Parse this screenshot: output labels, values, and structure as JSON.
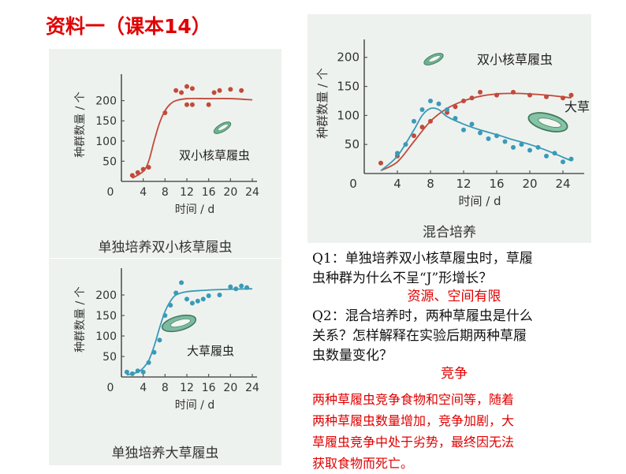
{
  "slide": {
    "title": "资料一（课本14）"
  },
  "chart_data": [
    {
      "type": "scatter",
      "title": "单独培养双小核草履虫",
      "xlabel": "时间 / d",
      "ylabel": "种群数量 / 个",
      "xlim": [
        0,
        24
      ],
      "ylim": [
        0,
        250
      ],
      "xticks": [
        0,
        4,
        8,
        12,
        16,
        20,
        24
      ],
      "yticks": [
        50,
        100,
        150,
        200
      ],
      "annotation": "双小核草履虫",
      "series": [
        {
          "color": "#c24a3a",
          "points": [
            [
              2,
              15
            ],
            [
              3,
              22
            ],
            [
              4,
              30
            ],
            [
              5,
              35
            ],
            [
              8,
              170
            ],
            [
              10,
              225
            ],
            [
              11,
              220
            ],
            [
              12,
              235
            ],
            [
              13,
              230
            ],
            [
              12,
              190
            ],
            [
              13,
              190
            ],
            [
              16,
              190
            ],
            [
              17,
              220
            ],
            [
              18,
              225
            ],
            [
              20,
              228
            ],
            [
              22,
              225
            ]
          ],
          "curve": [
            [
              2,
              8
            ],
            [
              4,
              25
            ],
            [
              5,
              50
            ],
            [
              6,
              100
            ],
            [
              7,
              145
            ],
            [
              8,
              175
            ],
            [
              9,
              192
            ],
            [
              10,
              200
            ],
            [
              12,
              205
            ],
            [
              16,
              205
            ],
            [
              20,
              205
            ],
            [
              24,
              202
            ]
          ]
        }
      ]
    },
    {
      "type": "scatter",
      "title": "单独培养大草履虫",
      "xlabel": "时间 / d",
      "ylabel": "种群数量 / 个",
      "xlim": [
        0,
        24
      ],
      "ylim": [
        0,
        250
      ],
      "xticks": [
        0,
        4,
        8,
        12,
        16,
        20,
        24
      ],
      "yticks": [
        50,
        100,
        150,
        200
      ],
      "annotation": "大草履虫",
      "series": [
        {
          "color": "#3a9ab8",
          "points": [
            [
              1,
              12
            ],
            [
              2,
              8
            ],
            [
              3,
              15
            ],
            [
              4,
              12
            ],
            [
              5,
              35
            ],
            [
              6,
              60
            ],
            [
              7,
              90
            ],
            [
              8,
              150
            ],
            [
              9,
              175
            ],
            [
              10,
              205
            ],
            [
              11,
              230
            ],
            [
              12,
              190
            ],
            [
              13,
              180
            ],
            [
              14,
              185
            ],
            [
              15,
              190
            ],
            [
              16,
              198
            ],
            [
              18,
              200
            ],
            [
              20,
              220
            ],
            [
              21,
              215
            ],
            [
              22,
              222
            ],
            [
              23,
              218
            ]
          ],
          "curve": [
            [
              1,
              5
            ],
            [
              3,
              12
            ],
            [
              4,
              22
            ],
            [
              5,
              40
            ],
            [
              6,
              75
            ],
            [
              7,
              120
            ],
            [
              8,
              160
            ],
            [
              9,
              185
            ],
            [
              10,
              200
            ],
            [
              12,
              208
            ],
            [
              16,
              212
            ],
            [
              20,
              214
            ],
            [
              24,
              215
            ]
          ]
        }
      ]
    },
    {
      "type": "scatter",
      "title": "混合培养",
      "xlabel": "时间 / d",
      "ylabel": "种群数量 / 个",
      "xlim": [
        0,
        26
      ],
      "ylim": [
        0,
        220
      ],
      "xticks": [
        0,
        4,
        8,
        12,
        16,
        20,
        24
      ],
      "yticks": [
        50,
        100,
        150,
        200
      ],
      "annotations": [
        "双小核草履虫",
        "大草"
      ],
      "series": [
        {
          "color": "#c24a3a",
          "points": [
            [
              2,
              18
            ],
            [
              4,
              30
            ],
            [
              6,
              65
            ],
            [
              7,
              80
            ],
            [
              8,
              90
            ],
            [
              10,
              105
            ],
            [
              11,
              115
            ],
            [
              12,
              125
            ],
            [
              13,
              130
            ],
            [
              14,
              140
            ],
            [
              16,
              135
            ],
            [
              18,
              140
            ],
            [
              20,
              135
            ],
            [
              22,
              132
            ],
            [
              24,
              130
            ],
            [
              25,
              135
            ]
          ],
          "curve": [
            [
              2,
              5
            ],
            [
              4,
              20
            ],
            [
              6,
              55
            ],
            [
              8,
              90
            ],
            [
              10,
              112
            ],
            [
              12,
              125
            ],
            [
              14,
              133
            ],
            [
              16,
              137
            ],
            [
              18,
              138
            ],
            [
              20,
              137
            ],
            [
              22,
              135
            ],
            [
              24,
              132
            ],
            [
              25,
              130
            ]
          ]
        },
        {
          "color": "#3a9ab8",
          "points": [
            [
              4,
              35
            ],
            [
              5,
              50
            ],
            [
              6,
              90
            ],
            [
              7,
              110
            ],
            [
              8,
              125
            ],
            [
              9,
              120
            ],
            [
              10,
              110
            ],
            [
              11,
              95
            ],
            [
              12,
              75
            ],
            [
              13,
              85
            ],
            [
              14,
              70
            ],
            [
              15,
              60
            ],
            [
              16,
              65
            ],
            [
              17,
              55
            ],
            [
              18,
              45
            ],
            [
              19,
              50
            ],
            [
              20,
              40
            ],
            [
              21,
              45
            ],
            [
              22,
              30
            ],
            [
              23,
              35
            ],
            [
              24,
              20
            ],
            [
              25,
              25
            ]
          ],
          "curve": [
            [
              2,
              5
            ],
            [
              4,
              30
            ],
            [
              6,
              75
            ],
            [
              7,
              100
            ],
            [
              8,
              112
            ],
            [
              9,
              110
            ],
            [
              10,
              98
            ],
            [
              12,
              85
            ],
            [
              14,
              75
            ],
            [
              16,
              67
            ],
            [
              18,
              58
            ],
            [
              20,
              50
            ],
            [
              22,
              40
            ],
            [
              24,
              28
            ],
            [
              25,
              22
            ]
          ]
        }
      ]
    }
  ],
  "qa": {
    "q1_line1": "Q1：单独培养双小核草履虫时，草履",
    "q1_line2": "虫种群为什么不呈“J”形增长？",
    "a1": "资源、空间有限",
    "q2_line1": "Q2：混合培养时，两种草履虫是什么",
    "q2_line2": "关系？怎样解释在实验后期两种草履",
    "q2_line3": "虫数量变化？",
    "a2": "竞争",
    "explain_line1": "两种草履虫竞争食物和空间等，随着",
    "explain_line2": "两种草履虫数量增加，竞争加剧，大",
    "explain_line3": "草履虫竞争中处于劣势，最终因无法",
    "explain_line4": "获取食物而死亡。"
  }
}
